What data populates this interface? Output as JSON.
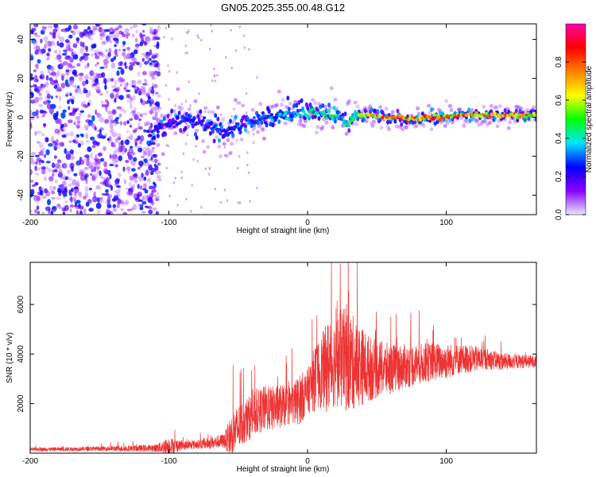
{
  "title": "GN05.2025.355.00.48.G12",
  "chart_data": [
    {
      "type": "heatmap",
      "xlabel": "Height of straight line (km)",
      "ylabel": "Frequency (Hz)",
      "xlim": [
        -200,
        165
      ],
      "ylim": [
        -50,
        48
      ],
      "xticks": [
        -200,
        -100,
        0,
        100
      ],
      "yticks": [
        -40,
        -20,
        0,
        20,
        40
      ],
      "colorbar": {
        "label": "Normalized spectral amplitude",
        "range": [
          0,
          1
        ],
        "ticks": [
          0.0,
          0.2,
          0.4,
          0.6,
          0.8
        ],
        "tick_labels": [
          "0.0",
          "0.2",
          "0.4",
          "0.6",
          "0.8"
        ],
        "colormap": [
          "#e8e8ff",
          "#8a00ff",
          "#0000ff",
          "#00e5ff",
          "#00ff00",
          "#ffff00",
          "#ff8000",
          "#ff0000",
          "#ff00aa"
        ]
      },
      "ridge": {
        "x": [
          -115,
          -105,
          -95,
          -85,
          -75,
          -65,
          -60,
          -55,
          -45,
          -35,
          -25,
          -15,
          -5,
          5,
          15,
          25,
          30,
          35,
          45,
          55,
          65,
          75,
          85,
          95,
          105,
          115,
          125,
          135,
          145,
          155,
          165
        ],
        "frequency": [
          -10,
          -5,
          -3,
          -1,
          -3,
          -5,
          -8,
          -6,
          -3,
          -1,
          0,
          1,
          2,
          3,
          2,
          -1,
          -3,
          1,
          1,
          0,
          0,
          -1,
          0,
          0,
          1,
          1,
          1,
          1,
          1,
          1,
          1
        ],
        "peak_amplitude": [
          0.25,
          0.3,
          0.3,
          0.32,
          0.3,
          0.3,
          0.28,
          0.3,
          0.32,
          0.35,
          0.4,
          0.42,
          0.45,
          0.48,
          0.5,
          0.5,
          0.52,
          0.6,
          0.8,
          0.95,
          0.95,
          0.9,
          0.95,
          0.95,
          0.9,
          0.9,
          0.85,
          0.85,
          0.9,
          0.9,
          0.85
        ]
      },
      "noise_region": {
        "x": [
          -200,
          -115
        ],
        "frequency": [
          -50,
          48
        ],
        "amplitude": [
          0.05,
          0.3
        ]
      }
    },
    {
      "type": "line",
      "xlabel": "Height of straight line (km)",
      "ylabel": "SNR (10 * v/v)",
      "xlim": [
        -200,
        165
      ],
      "ylim": [
        0,
        7700
      ],
      "xticks": [
        -200,
        -100,
        0,
        100
      ],
      "yticks": [
        2000,
        4000,
        6000
      ],
      "line_color": "#ee3333",
      "envelope": {
        "x": [
          -200,
          -150,
          -110,
          -100,
          -90,
          -80,
          -70,
          -60,
          -55,
          -50,
          -45,
          -40,
          -35,
          -30,
          -25,
          -20,
          -15,
          -10,
          -5,
          0,
          5,
          10,
          15,
          20,
          25,
          30,
          35,
          40,
          45,
          50,
          60,
          70,
          80,
          90,
          100,
          110,
          120,
          130,
          140,
          150,
          165
        ],
        "base": [
          150,
          180,
          200,
          300,
          300,
          350,
          400,
          500,
          700,
          1000,
          1300,
          1500,
          1700,
          1800,
          1800,
          1900,
          1900,
          2000,
          2200,
          2500,
          3000,
          3300,
          3500,
          3700,
          3800,
          3700,
          3600,
          3500,
          3400,
          3400,
          3400,
          3500,
          3600,
          3700,
          3700,
          3800,
          3800,
          3800,
          3700,
          3700,
          3700
        ],
        "spread": [
          120,
          150,
          250,
          600,
          300,
          300,
          400,
          500,
          1500,
          1600,
          1500,
          1500,
          1500,
          1600,
          1500,
          1500,
          1300,
          1500,
          1700,
          1500,
          2200,
          2500,
          3200,
          3000,
          3500,
          3500,
          3000,
          2600,
          2200,
          2000,
          1700,
          1500,
          1400,
          1300,
          1200,
          1000,
          900,
          700,
          600,
          500,
          400
        ]
      }
    }
  ]
}
